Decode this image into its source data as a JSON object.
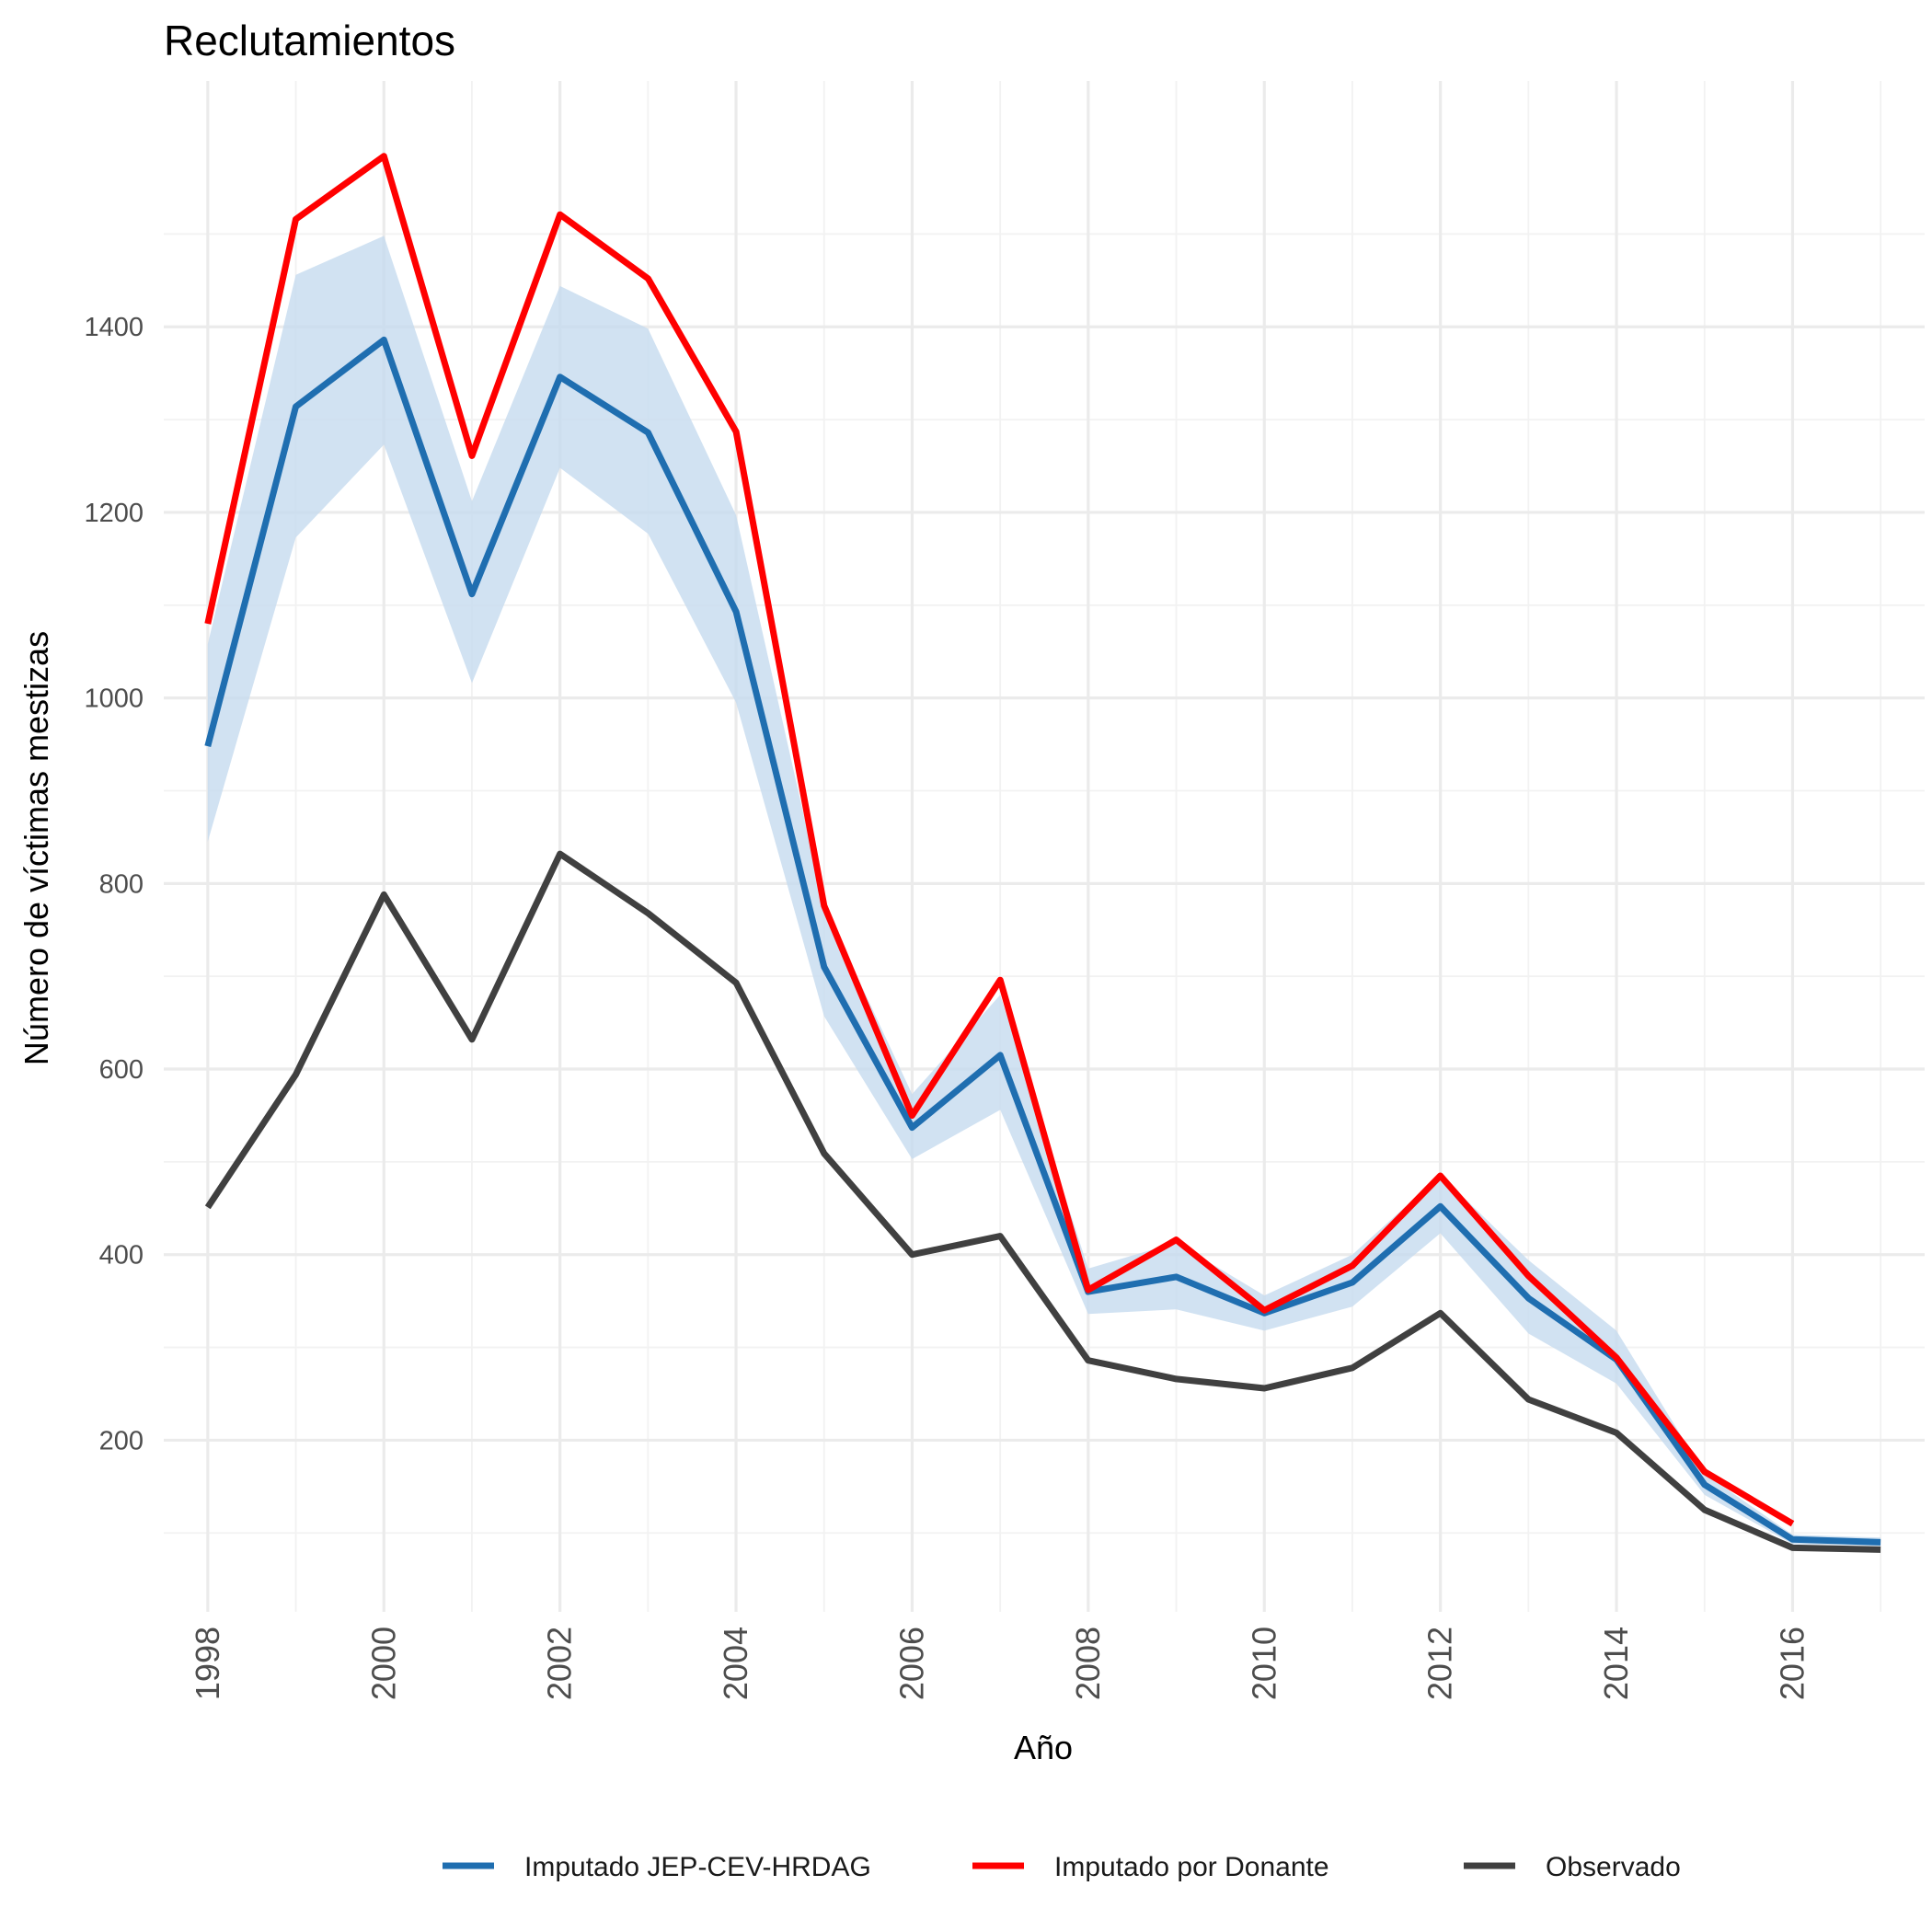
{
  "chart_data": {
    "type": "line",
    "title": "Reclutamientos",
    "xlabel": "Año",
    "ylabel": "Número de víctimas mestizas",
    "x": [
      1998,
      1999,
      2000,
      2001,
      2002,
      2003,
      2004,
      2005,
      2006,
      2007,
      2008,
      2009,
      2010,
      2011,
      2012,
      2013,
      2014,
      2015,
      2016,
      2017
    ],
    "x_ticks": [
      1998,
      2000,
      2002,
      2004,
      2006,
      2008,
      2010,
      2012,
      2014,
      2016
    ],
    "y_ticks": [
      200,
      400,
      600,
      800,
      1000,
      1200,
      1400
    ],
    "xlim": [
      1997.5,
      2017.5
    ],
    "ylim": [
      15,
      1665
    ],
    "grid": true,
    "legend_position": "bottom",
    "series": [
      {
        "name": "Imputado JEP-CEV-HRDAG",
        "color": "#1f6eb0",
        "values": [
          948,
          1314,
          1386,
          1112,
          1346,
          1286,
          1093,
          710,
          537,
          615,
          360,
          376,
          337,
          370,
          452,
          353,
          287,
          152,
          93,
          90
        ],
        "band_lower": [
          845,
          1173,
          1273,
          1016,
          1248,
          1177,
          995,
          657,
          503,
          556,
          336,
          341,
          318,
          344,
          423,
          315,
          261,
          141,
          88,
          86
        ],
        "band_upper": [
          1058,
          1456,
          1498,
          1212,
          1444,
          1398,
          1197,
          776,
          573,
          680,
          385,
          413,
          356,
          400,
          486,
          394,
          318,
          164,
          98,
          95
        ],
        "band_color": "#c6dbef"
      },
      {
        "name": "Imputado por Donante",
        "color": "#ff0000",
        "values": [
          1080,
          1516,
          1584,
          1261,
          1521,
          1452,
          1287,
          776,
          550,
          696,
          362,
          416,
          340,
          388,
          485,
          377,
          289,
          166,
          110,
          null
        ]
      },
      {
        "name": "Observado",
        "color": "#404040",
        "values": [
          451,
          594,
          788,
          632,
          832,
          768,
          693,
          509,
          400,
          420,
          286,
          266,
          256,
          278,
          337,
          244,
          208,
          125,
          84,
          82
        ]
      }
    ]
  }
}
